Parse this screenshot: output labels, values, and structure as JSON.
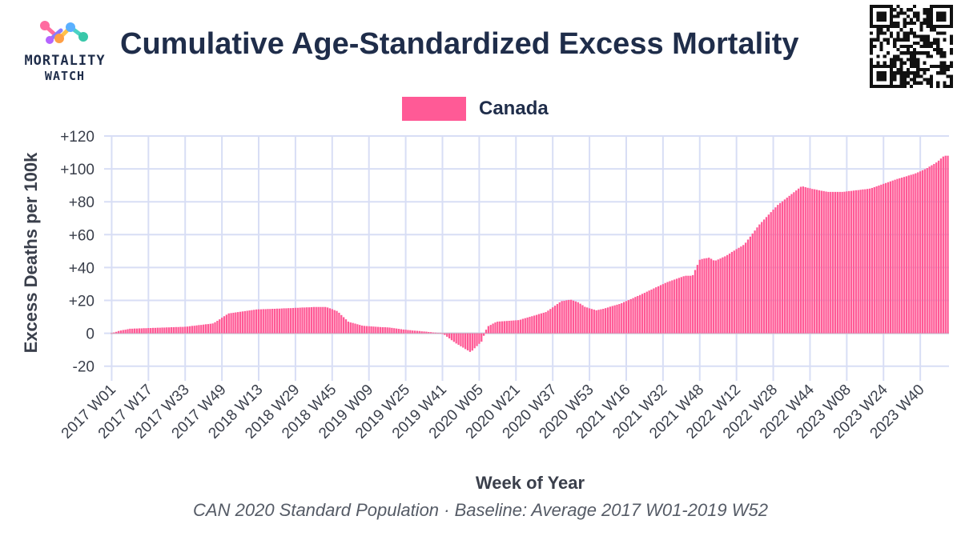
{
  "logo": {
    "line1": "MORTALITY",
    "line2": "WATCH"
  },
  "title": "Cumulative Age-Standardized Excess Mortality",
  "legend": {
    "label": "Canada",
    "color": "#ff5a96"
  },
  "caption": "CAN 2020 Standard Population · Baseline: Average 2017 W01-2019 W52",
  "colors": {
    "bar": "#ff5a96",
    "grid": "#d8def5",
    "text": "#1f2d4a",
    "zero": "#c9cdd8"
  },
  "chart_data": {
    "type": "bar",
    "title": "Cumulative Age-Standardized Excess Mortality",
    "xlabel": "Week of Year",
    "ylabel": "Excess Deaths per 100k",
    "ylim": [
      -25,
      120
    ],
    "yticks": [
      -20,
      0,
      20,
      40,
      60,
      80,
      100,
      120
    ],
    "ytick_labels": [
      "-20",
      "0",
      "+20",
      "+40",
      "+60",
      "+80",
      "+100",
      "+120"
    ],
    "grid": true,
    "legend_position": "top-center",
    "x_start": "2017 W01",
    "num_weeks": 365,
    "tick_every": 16,
    "tick_labels": [
      "2017 W01",
      "2017 W17",
      "2017 W33",
      "2017 W49",
      "2018 W13",
      "2018 W29",
      "2018 W45",
      "2019 W09",
      "2019 W25",
      "2019 W41",
      "2020 W05",
      "2020 W21",
      "2020 W37",
      "2020 W53",
      "2021 W16",
      "2021 W32",
      "2021 W48",
      "2022 W12",
      "2022 W28",
      "2022 W44",
      "2023 W08",
      "2023 W24",
      "2023 W40"
    ],
    "series": [
      {
        "name": "Canada",
        "anchors": [
          [
            0,
            0
          ],
          [
            4,
            1.5
          ],
          [
            10,
            2.8
          ],
          [
            40,
            4
          ],
          [
            55,
            6
          ],
          [
            63,
            12
          ],
          [
            78,
            14.5
          ],
          [
            90,
            15
          ],
          [
            110,
            16
          ],
          [
            116,
            16
          ],
          [
            122,
            13.5
          ],
          [
            128,
            7
          ],
          [
            136,
            4.5
          ],
          [
            150,
            3.5
          ],
          [
            160,
            2
          ],
          [
            170,
            1
          ],
          [
            178,
            0
          ],
          [
            180,
            -1
          ],
          [
            186,
            -6
          ],
          [
            194,
            -11.5
          ],
          [
            200,
            -5
          ],
          [
            203,
            4
          ],
          [
            208,
            7
          ],
          [
            220,
            8
          ],
          [
            235,
            13
          ],
          [
            243,
            19.5
          ],
          [
            248,
            20.5
          ],
          [
            252,
            19
          ],
          [
            256,
            16
          ],
          [
            262,
            14
          ],
          [
            266,
            15
          ],
          [
            275,
            18
          ],
          [
            285,
            23
          ],
          [
            300,
            31
          ],
          [
            310,
            35
          ],
          [
            314,
            35
          ],
          [
            318,
            45
          ],
          [
            323,
            46
          ],
          [
            326,
            44
          ],
          [
            332,
            47
          ],
          [
            336,
            50
          ],
          [
            342,
            54
          ],
          [
            350,
            66
          ],
          [
            360,
            78
          ],
          [
            373,
            89.5
          ],
          [
            378,
            88
          ],
          [
            387,
            86
          ],
          [
            395,
            86
          ],
          [
            410,
            88
          ],
          [
            425,
            94
          ],
          [
            434,
            97
          ],
          [
            440,
            100
          ],
          [
            446,
            104
          ],
          [
            450,
            108
          ],
          [
            452,
            108
          ]
        ],
        "values": []
      }
    ]
  }
}
